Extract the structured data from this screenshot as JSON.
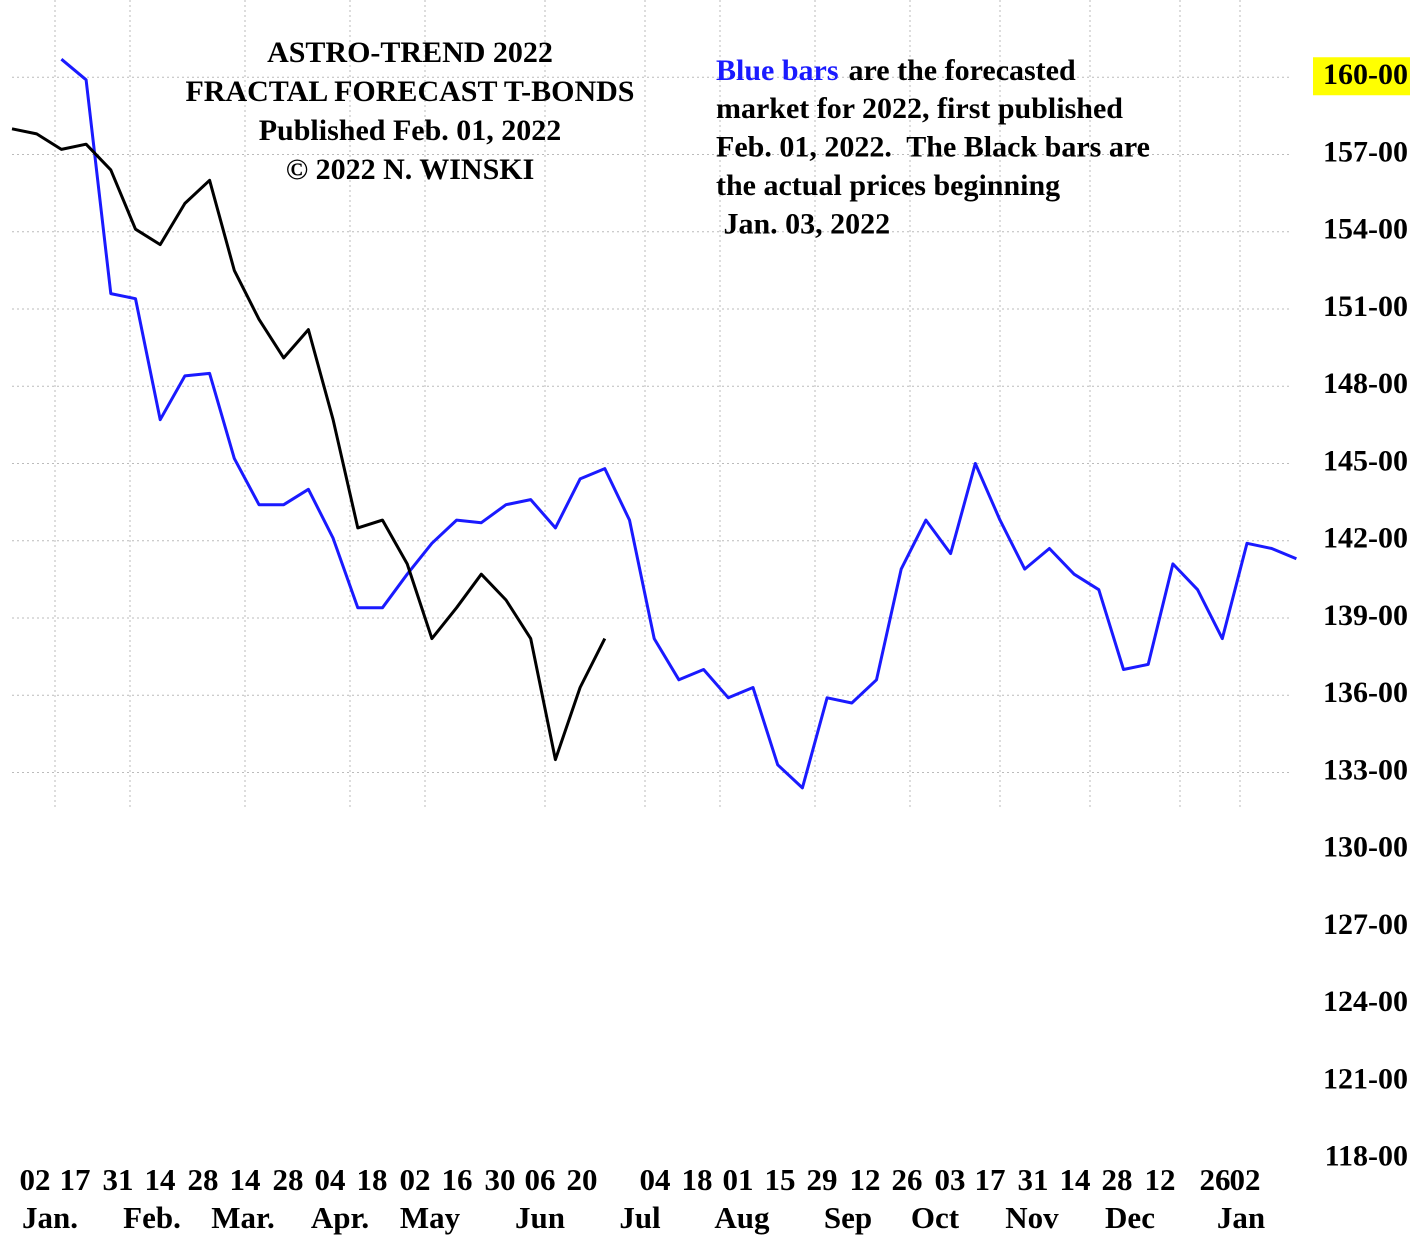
{
  "chart_data": {
    "type": "line",
    "title": [
      "ASTRO-TREND 2022",
      "FRACTAL FORECAST T-BONDS",
      "Published Feb. 01, 2022",
      "© 2022 N. WINSKI"
    ],
    "annotation": {
      "highlight": "Blue bars",
      "highlight_color": "#1a1aff",
      "lines": [
        "are the forecasted",
        "market for 2022, first published",
        "Feb. 01, 2022.  The Black bars are",
        "the actual prices beginning",
        " Jan. 03, 2022"
      ]
    },
    "x_day_labels": [
      "02",
      "17",
      "31",
      "14",
      "28",
      "14",
      "28",
      "04",
      "18",
      "02",
      "16",
      "30",
      "06",
      "20",
      "04",
      "18",
      "01",
      "15",
      "29",
      "12",
      "26",
      "03",
      "17",
      "31",
      "14",
      "28",
      "12",
      "26",
      "02"
    ],
    "x_month_labels": [
      "Jan.",
      "Feb.",
      "Mar.",
      "Apr.",
      "May",
      "Jun",
      "Jul",
      "Aug",
      "Sep",
      "Oct",
      "Nov",
      "Dec",
      "Jan"
    ],
    "ylim": [
      115,
      163
    ],
    "yticks": [
      {
        "value": 160,
        "label": "160-00"
      },
      {
        "value": 157,
        "label": "157-00"
      },
      {
        "value": 154,
        "label": "154-00"
      },
      {
        "value": 151,
        "label": "151-00"
      },
      {
        "value": 148,
        "label": "148-00"
      },
      {
        "value": 145,
        "label": "145-00"
      },
      {
        "value": 142,
        "label": "142-00"
      },
      {
        "value": 139,
        "label": "139-00"
      },
      {
        "value": 136,
        "label": "136-00"
      },
      {
        "value": 133,
        "label": "133-00"
      },
      {
        "value": 130,
        "label": "130-00"
      },
      {
        "value": 127,
        "label": "127-00"
      },
      {
        "value": 124,
        "label": "124-00"
      },
      {
        "value": 121,
        "label": "121-00"
      },
      {
        "value": 118,
        "label": "118-00"
      }
    ],
    "highlighted_ytick": 160,
    "highlight_tick_color": "#ffff00",
    "grid": true,
    "series": [
      {
        "color": "#1a1aff",
        "values": [
          null,
          null,
          160.7,
          159.9,
          151.6,
          151.4,
          146.7,
          148.4,
          148.5,
          145.2,
          143.4,
          143.4,
          144.0,
          142.1,
          139.4,
          139.4,
          140.7,
          141.9,
          142.8,
          142.7,
          143.4,
          143.6,
          142.5,
          144.4,
          144.8,
          142.8,
          138.2,
          136.6,
          137.0,
          135.9,
          136.3,
          133.3,
          132.4,
          135.9,
          135.7,
          136.6,
          140.9,
          142.8,
          141.5,
          145.0,
          142.8,
          140.9,
          141.7,
          140.7,
          140.1,
          137.0,
          137.2,
          141.1,
          140.1,
          138.2,
          141.9,
          141.7,
          141.3
        ]
      },
      {
        "color": "#000000",
        "values": [
          158.0,
          157.8,
          157.2,
          157.4,
          156.4,
          154.1,
          153.5,
          155.1,
          156.0,
          152.5,
          150.6,
          149.1,
          150.2,
          146.7,
          142.5,
          142.8,
          141.1,
          138.2,
          139.4,
          140.7,
          139.7,
          138.2,
          133.5,
          136.3,
          138.2,
          null,
          null,
          null,
          null,
          null,
          null,
          null,
          null,
          null,
          null,
          null,
          null,
          null,
          null,
          null,
          null,
          null,
          null,
          null,
          null,
          null,
          null,
          null,
          null,
          null,
          null,
          null,
          null
        ]
      }
    ]
  }
}
